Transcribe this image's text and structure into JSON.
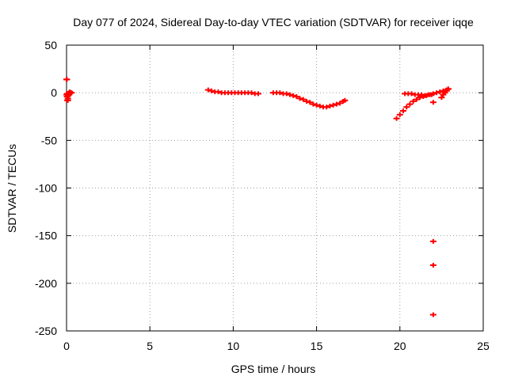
{
  "chart_data": {
    "type": "scatter",
    "title": "Day 077 of 2024, Sidereal Day-to-day VTEC variation (SDTVAR) for receiver iqqe",
    "xlabel": "GPS time / hours",
    "ylabel": "SDTVAR / TECUs",
    "xlim": [
      0,
      25
    ],
    "ylim": [
      -250,
      50
    ],
    "xticks": [
      0,
      5,
      10,
      15,
      20,
      25
    ],
    "yticks": [
      -250,
      -200,
      -150,
      -100,
      -50,
      0,
      50
    ],
    "grid": true,
    "marker": "+",
    "color": "#ff0000",
    "series": [
      {
        "name": "SDTVAR",
        "x": [
          0.0,
          0.03,
          0.05,
          0.08,
          0.1,
          0.13,
          0.15,
          0.18,
          0.2,
          0.25,
          0.3,
          0.0,
          0.02,
          0.05,
          0.08,
          8.5,
          8.7,
          8.9,
          9.1,
          9.3,
          9.5,
          9.7,
          9.9,
          10.1,
          10.3,
          10.5,
          10.7,
          10.9,
          11.1,
          11.3,
          11.5,
          12.4,
          12.6,
          12.8,
          13.0,
          13.2,
          13.4,
          13.6,
          13.8,
          14.0,
          14.2,
          14.4,
          14.6,
          14.8,
          15.0,
          15.2,
          15.4,
          15.6,
          15.8,
          16.0,
          16.2,
          16.4,
          16.6,
          16.7,
          19.8,
          20.0,
          20.2,
          20.4,
          20.6,
          20.8,
          21.0,
          21.2,
          21.4,
          21.6,
          21.8,
          22.0,
          22.2,
          22.4,
          22.6,
          22.8,
          22.9,
          20.3,
          20.5,
          20.7,
          20.9,
          21.1,
          21.3,
          21.5,
          21.7,
          21.9,
          22.0,
          22.0,
          22.0,
          22.0,
          22.5,
          22.6,
          22.7,
          22.8,
          22.9
        ],
        "y": [
          -2,
          -4,
          -1,
          -6,
          -3,
          -2,
          0,
          -1,
          1,
          0,
          0,
          14,
          14,
          -8,
          -8,
          3,
          2,
          1,
          1,
          0,
          0,
          0,
          0,
          0,
          0,
          0,
          0,
          0,
          0,
          -1,
          -1,
          0,
          0,
          0,
          -1,
          -1,
          -2,
          -3,
          -4,
          -6,
          -7,
          -9,
          -10,
          -12,
          -13,
          -14,
          -15,
          -15,
          -14,
          -13,
          -12,
          -11,
          -9,
          -8,
          -27,
          -23,
          -19,
          -15,
          -12,
          -9,
          -7,
          -5,
          -4,
          -3,
          -2,
          -1,
          0,
          1,
          2,
          3,
          4,
          -1,
          -1,
          -1,
          -2,
          -2,
          -2,
          -3,
          -2,
          -2,
          -10,
          -156,
          -181,
          -233,
          -5,
          -2,
          0,
          2,
          4
        ]
      }
    ]
  }
}
